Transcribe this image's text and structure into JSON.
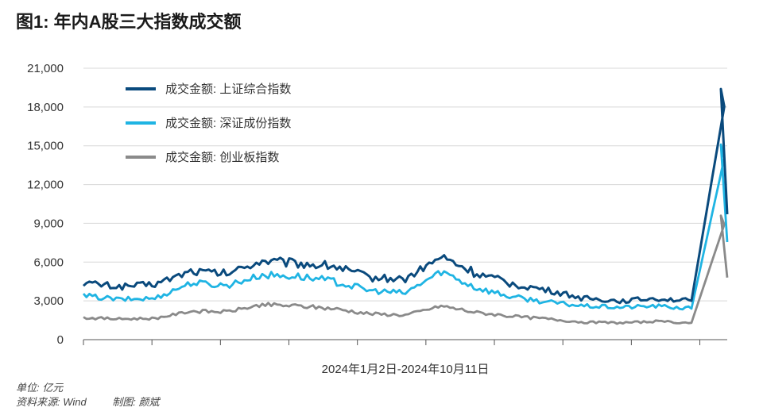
{
  "title": "图1: 年内A股三大指数成交额",
  "footnotes": {
    "unit": "单位: 亿元",
    "source": "资料来源: Wind",
    "maker": "制图: 颜斌"
  },
  "colors": {
    "sh": "#0a4a7d",
    "sz": "#1fb4e3",
    "cyb": "#8a8a8a",
    "grid": "#d8d8d8",
    "axis": "#555555"
  },
  "chart_data": {
    "type": "line",
    "title": "",
    "xlabel": "2024年1月2日-2024年10月11日",
    "ylabel": "",
    "ylim": [
      0,
      21000
    ],
    "yticks": [
      0,
      3000,
      6000,
      9000,
      12000,
      15000,
      18000,
      21000
    ],
    "ytick_labels": [
      "0",
      "3,000",
      "6,000",
      "9,000",
      "12,000",
      "15,000",
      "18,000",
      "21,000"
    ],
    "x_count": 19,
    "x_index": [
      0,
      1,
      2,
      3,
      4,
      5,
      6,
      7,
      8,
      9,
      10,
      11,
      12,
      13,
      14,
      15,
      16,
      17,
      18
    ],
    "grid": "horizontal",
    "legend_position": "top-left",
    "series": [
      {
        "name": "成交金额: 上证综合指数",
        "key": "sh",
        "values": [
          4400,
          4100,
          4300,
          5300,
          5100,
          6100,
          5900,
          5700,
          4800,
          4700,
          6400,
          5100,
          4300,
          3800,
          3200,
          3000,
          3200,
          3000,
          19400
        ]
      },
      {
        "name": "成交金额: 深证成份指数",
        "key": "sz",
        "values": [
          3400,
          3100,
          3200,
          4400,
          4200,
          5000,
          4900,
          4500,
          3800,
          3600,
          5300,
          4000,
          3300,
          2900,
          2600,
          2500,
          2600,
          2400,
          15100
        ]
      },
      {
        "name": "成交金额: 创业板指数",
        "key": "cyb",
        "values": [
          1700,
          1600,
          1650,
          2200,
          2150,
          2700,
          2600,
          2400,
          2000,
          1900,
          2600,
          2100,
          1800,
          1600,
          1350,
          1300,
          1400,
          1300,
          9600
        ]
      }
    ]
  }
}
